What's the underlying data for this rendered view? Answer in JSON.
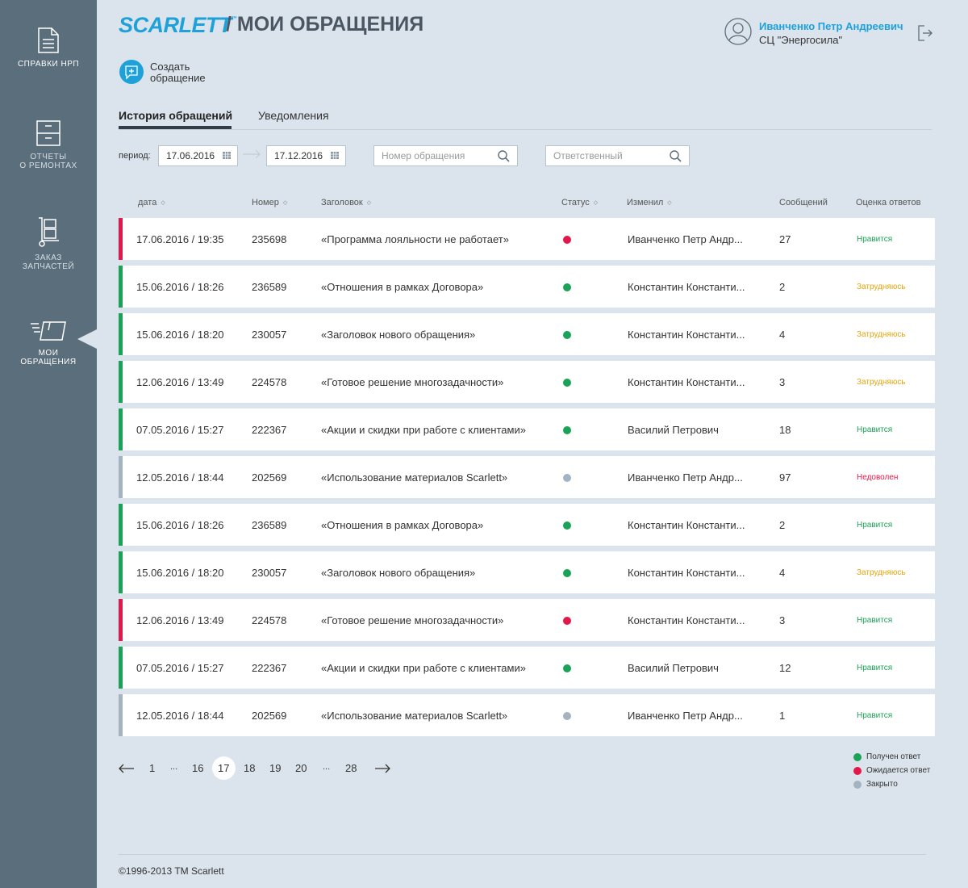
{
  "sidebar": {
    "items": [
      {
        "label": "СПРАВКИ НРП",
        "icon": "document-icon"
      },
      {
        "label1": "ОТЧЕТЫ",
        "label2": "О РЕМОНТАХ",
        "icon": "cabinet-icon"
      },
      {
        "label1": "ЗАКАЗ",
        "label2": "ЗАПЧАСТЕЙ",
        "icon": "hand-truck-icon"
      },
      {
        "label1": "МОИ",
        "label2": "ОБРАЩЕНИЯ",
        "icon": "fast-box-icon",
        "active": true
      }
    ]
  },
  "header": {
    "logo": "SCARLETT",
    "logo_tm": "™",
    "title": "/ МОИ ОБРАЩЕНИЯ",
    "user_name": "Иванченко Петр Андреевич",
    "user_org": "СЦ \"Энергосила\""
  },
  "create": {
    "line1": "Создать",
    "line2": "обращение"
  },
  "tabs": [
    {
      "label": "История обращений",
      "active": true
    },
    {
      "label": "Уведомления",
      "active": false
    }
  ],
  "filters": {
    "period_label": "период:",
    "date_from": "17.06.2016",
    "date_to": "17.12.2016",
    "number_placeholder": "Номер обращения",
    "responsible_placeholder": "Ответственный"
  },
  "columns": {
    "date": "дата",
    "number": "Номер",
    "title": "Заголовок",
    "status": "Статус",
    "changed": "Изменил",
    "messages": "Сообщений",
    "rating": "Оценка ответов"
  },
  "colors": {
    "answered": "#1aa356",
    "waiting": "#e2184a",
    "closed": "#a3b3c0",
    "rate_like": "#1aa356",
    "rate_hesitate": "#e2a60e",
    "rate_unhappy": "#e2184a",
    "accent": "#1ea1d9"
  },
  "rows": [
    {
      "date": "17.06.2016 / 19:35",
      "number": "235698",
      "title": "«Программа лояльности не работает»",
      "status": "waiting",
      "changed": "Иванченко Петр Андр...",
      "messages": "27",
      "rating": "Нравится",
      "rating_type": "like"
    },
    {
      "date": "15.06.2016 / 18:26",
      "number": "236589",
      "title": "«Отношения в рамках Договора»",
      "status": "answered",
      "changed": "Константин Константи...",
      "messages": "2",
      "rating": "Затрудняюсь",
      "rating_type": "hesitate"
    },
    {
      "date": "15.06.2016 / 18:20",
      "number": "230057",
      "title": "«Заголовок нового обращения»",
      "status": "answered",
      "changed": "Константин Константи...",
      "messages": "4",
      "rating": "Затрудняюсь",
      "rating_type": "hesitate"
    },
    {
      "date": "12.06.2016 / 13:49",
      "number": "224578",
      "title": "«Готовое решение многозадачности»",
      "status": "answered",
      "changed": "Константин Константи...",
      "messages": "3",
      "rating": "Затрудняюсь",
      "rating_type": "hesitate"
    },
    {
      "date": "07.05.2016 / 15:27",
      "number": "222367",
      "title": "«Акции и скидки при работе с клиентами»",
      "status": "answered",
      "changed": "Василий Петрович",
      "messages": "18",
      "rating": "Нравится",
      "rating_type": "like"
    },
    {
      "date": "12.05.2016 / 18:44",
      "number": "202569",
      "title": "«Использование материалов Scarlett»",
      "status": "closed",
      "changed": "Иванченко Петр Андр...",
      "messages": "97",
      "rating": "Недоволен",
      "rating_type": "unhappy"
    },
    {
      "date": "15.06.2016 / 18:26",
      "number": "236589",
      "title": "«Отношения в рамках Договора»",
      "status": "answered",
      "changed": "Константин Константи...",
      "messages": "2",
      "rating": "Нравится",
      "rating_type": "like"
    },
    {
      "date": "15.06.2016 / 18:20",
      "number": "230057",
      "title": "«Заголовок нового обращения»",
      "status": "answered",
      "changed": "Константин Константи...",
      "messages": "4",
      "rating": "Затрудняюсь",
      "rating_type": "hesitate"
    },
    {
      "date": "12.06.2016 / 13:49",
      "number": "224578",
      "title": "«Готовое решение многозадачности»",
      "status": "waiting",
      "changed": "Константин Константи...",
      "messages": "3",
      "rating": "Нравится",
      "rating_type": "like"
    },
    {
      "date": "07.05.2016 / 15:27",
      "number": "222367",
      "title": "«Акции и скидки при работе с клиентами»",
      "status": "answered",
      "changed": "Василий Петрович",
      "messages": "12",
      "rating": "Нравится",
      "rating_type": "like"
    },
    {
      "date": "12.05.2016 / 18:44",
      "number": "202569",
      "title": "«Использование материалов Scarlett»",
      "status": "closed",
      "changed": "Иванченко Петр Андр...",
      "messages": "1",
      "rating": "Нравится",
      "rating_type": "like"
    }
  ],
  "pagination": {
    "pages": [
      "1",
      "...",
      "16",
      "17",
      "18",
      "19",
      "20",
      "...",
      "28"
    ],
    "current": "17"
  },
  "legend": [
    {
      "label": "Получен ответ",
      "status": "answered"
    },
    {
      "label": "Ожидается ответ",
      "status": "waiting"
    },
    {
      "label": "Закрыто",
      "status": "closed"
    }
  ],
  "footer": "©1996-2013 TM Scarlett"
}
